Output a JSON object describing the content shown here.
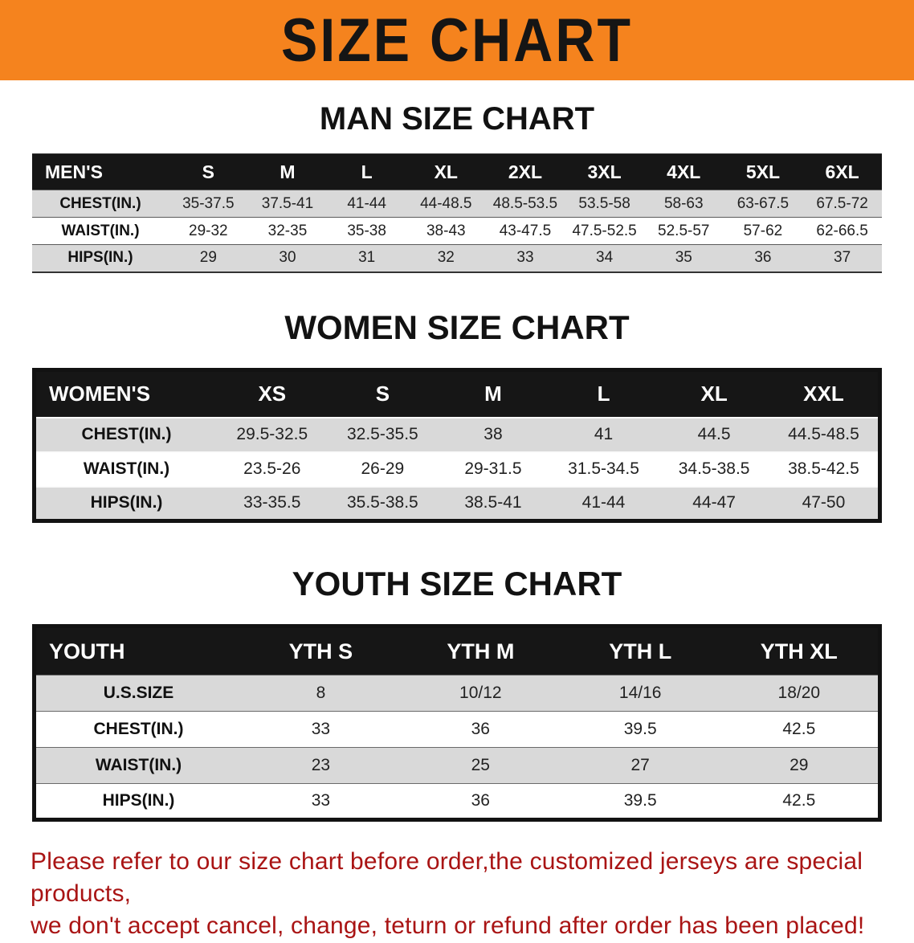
{
  "banner": {
    "title": "SIZE CHART"
  },
  "sections": {
    "men": {
      "heading": "MAN SIZE CHART",
      "table": {
        "header": [
          "MEN'S",
          "S",
          "M",
          "L",
          "XL",
          "2XL",
          "3XL",
          "4XL",
          "5XL",
          "6XL"
        ],
        "rows": [
          [
            "CHEST(IN.)",
            "35-37.5",
            "37.5-41",
            "41-44",
            "44-48.5",
            "48.5-53.5",
            "53.5-58",
            "58-63",
            "63-67.5",
            "67.5-72"
          ],
          [
            "WAIST(IN.)",
            "29-32",
            "32-35",
            "35-38",
            "38-43",
            "43-47.5",
            "47.5-52.5",
            "52.5-57",
            "57-62",
            "62-66.5"
          ],
          [
            "HIPS(IN.)",
            "29",
            "30",
            "31",
            "32",
            "33",
            "34",
            "35",
            "36",
            "37"
          ]
        ]
      }
    },
    "women": {
      "heading": "WOMEN SIZE CHART",
      "table": {
        "header": [
          "WOMEN'S",
          "XS",
          "S",
          "M",
          "L",
          "XL",
          "XXL"
        ],
        "rows": [
          [
            "CHEST(IN.)",
            "29.5-32.5",
            "32.5-35.5",
            "38",
            "41",
            "44.5",
            "44.5-48.5"
          ],
          [
            "WAIST(IN.)",
            "23.5-26",
            "26-29",
            "29-31.5",
            "31.5-34.5",
            "34.5-38.5",
            "38.5-42.5"
          ],
          [
            "HIPS(IN.)",
            "33-35.5",
            "35.5-38.5",
            "38.5-41",
            "41-44",
            "44-47",
            "47-50"
          ]
        ]
      }
    },
    "youth": {
      "heading": "YOUTH SIZE CHART",
      "table": {
        "header": [
          "YOUTH",
          "YTH S",
          "YTH M",
          "YTH L",
          "YTH XL"
        ],
        "rows": [
          [
            "U.S.SIZE",
            "8",
            "10/12",
            "14/16",
            "18/20"
          ],
          [
            "CHEST(IN.)",
            "33",
            "36",
            "39.5",
            "42.5"
          ],
          [
            "WAIST(IN.)",
            "23",
            "25",
            "27",
            "29"
          ],
          [
            "HIPS(IN.)",
            "33",
            "36",
            "39.5",
            "42.5"
          ]
        ]
      }
    }
  },
  "footer": {
    "line1": "Please refer to our size chart before order,the customized jerseys are special products,",
    "line2": "we don't accept cancel, change, teturn or refund after order has been placed!"
  },
  "colors": {
    "banner_bg": "#f5831e",
    "table_header_bg": "#161616",
    "row_stripe": "#d9d9d9",
    "note_text": "#a91414"
  }
}
